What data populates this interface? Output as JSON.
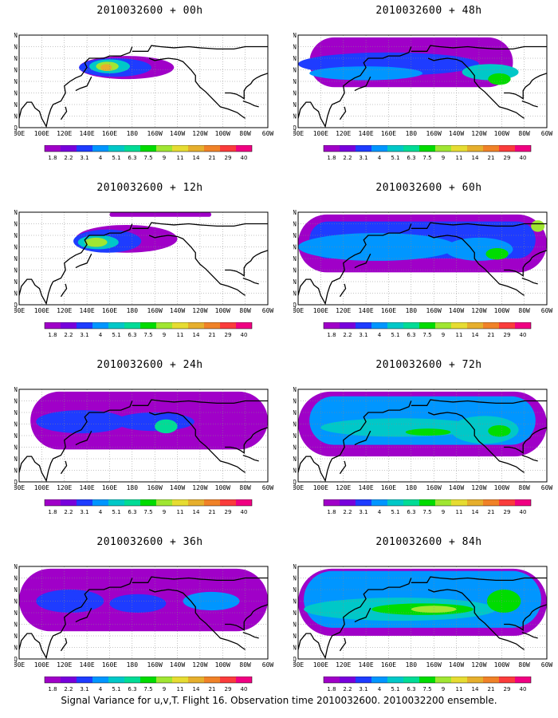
{
  "panels": [
    {
      "title": "2010032600 + 00h"
    },
    {
      "title": "2010032600 + 48h"
    },
    {
      "title": "2010032600 + 12h"
    },
    {
      "title": "2010032600 + 60h"
    },
    {
      "title": "2010032600 + 24h"
    },
    {
      "title": "2010032600 + 72h"
    },
    {
      "title": "2010032600 + 36h"
    },
    {
      "title": "2010032600 + 84h"
    }
  ],
  "lat_labels": [
    "80N",
    "70N",
    "60N",
    "50N",
    "40N",
    "30N",
    "20N",
    "10N",
    "EQ"
  ],
  "lon_labels": [
    "80E",
    "100E",
    "120E",
    "140E",
    "160E",
    "180",
    "160W",
    "140W",
    "120W",
    "100W",
    "80W",
    "60W"
  ],
  "colorbar": {
    "labels": [
      "1.8",
      "2.2",
      "3.1",
      "4",
      "5.1",
      "6.3",
      "7.5",
      "9",
      "11",
      "14",
      "21",
      "29",
      "40"
    ],
    "colors": [
      "#a000c8",
      "#7800dc",
      "#1e3cff",
      "#0096ff",
      "#00c8c8",
      "#00dc96",
      "#00dc00",
      "#a0e632",
      "#e6dc32",
      "#e6af2d",
      "#f08228",
      "#fa3c3c",
      "#f00082"
    ]
  },
  "caption": "Signal Variance for u,v,T. Flight 16. Observation time 2010032600. 2010032200 ensemble."
}
